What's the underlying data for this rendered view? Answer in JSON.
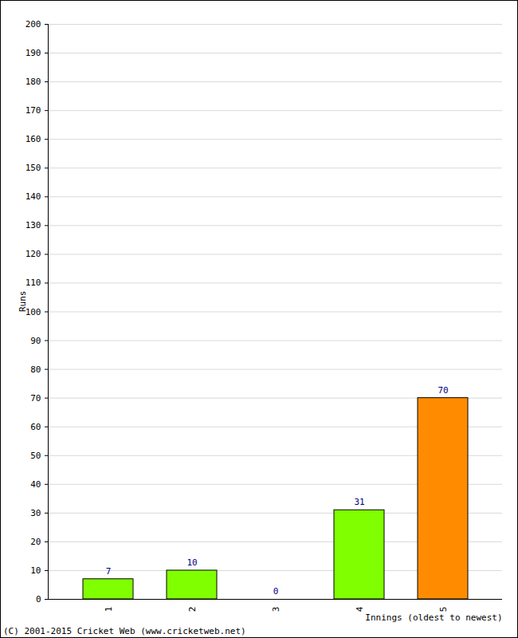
{
  "chart_data": {
    "type": "bar",
    "categories": [
      "1",
      "2",
      "3",
      "4",
      "5"
    ],
    "values": [
      7,
      10,
      0,
      31,
      70
    ],
    "colors": [
      "#80ff00",
      "#80ff00",
      "#80ff00",
      "#80ff00",
      "#ff8c00"
    ],
    "x_label": "Innings (oldest to newest)",
    "y_label": "Runs",
    "caption": "(C) 2001-2015 Cricket Web (www.cricketweb.net)",
    "ylim": [
      0,
      200
    ],
    "yticks": [
      0,
      10,
      20,
      30,
      40,
      50,
      60,
      70,
      80,
      90,
      100,
      110,
      120,
      130,
      140,
      150,
      160,
      170,
      180,
      190,
      200
    ],
    "grid": true,
    "data_labels": true
  }
}
